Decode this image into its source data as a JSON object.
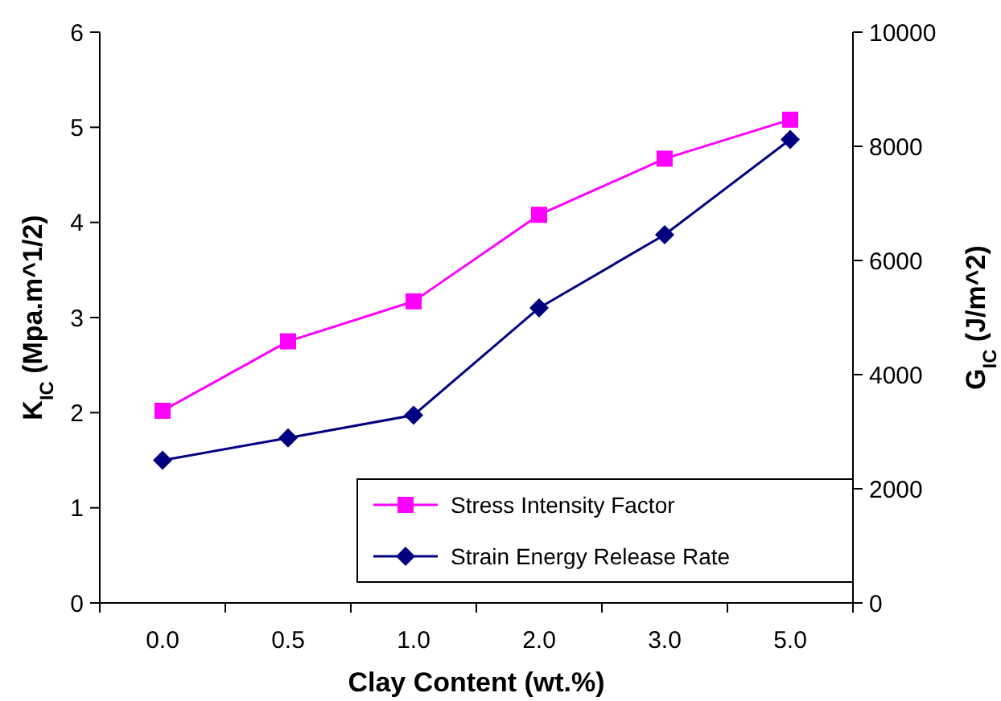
{
  "chart_data": {
    "type": "line",
    "xlabel": "Clay Content (wt.%)",
    "ylabel": "K$_{IC}$ (Mpa.m^1/2)",
    "y2label": "G$_{IC}$ (J/m^2)",
    "categories": [
      "0.0",
      "0.5",
      "1.0",
      "2.0",
      "3.0",
      "5.0"
    ],
    "ylim": [
      0,
      6
    ],
    "yticks": [
      0,
      1,
      2,
      3,
      4,
      5,
      6
    ],
    "y2lim": [
      0,
      10000
    ],
    "y2ticks": [
      0,
      2000,
      4000,
      6000,
      8000,
      10000
    ],
    "grid": false,
    "legend": "bottom right",
    "line_style": "solid",
    "series": [
      {
        "name": "Stress Intensity Factor",
        "color": "#ff00ff",
        "marker": "square",
        "values": [
          2.02,
          2.75,
          3.17,
          4.08,
          4.67,
          5.08
        ]
      },
      {
        "name": "Strain Energy Release Rate",
        "color": "#000080",
        "marker": "diamond",
        "axis": "y2",
        "values": [
          2500,
          2890,
          3290,
          5170,
          6450,
          8120
        ]
      }
    ]
  }
}
